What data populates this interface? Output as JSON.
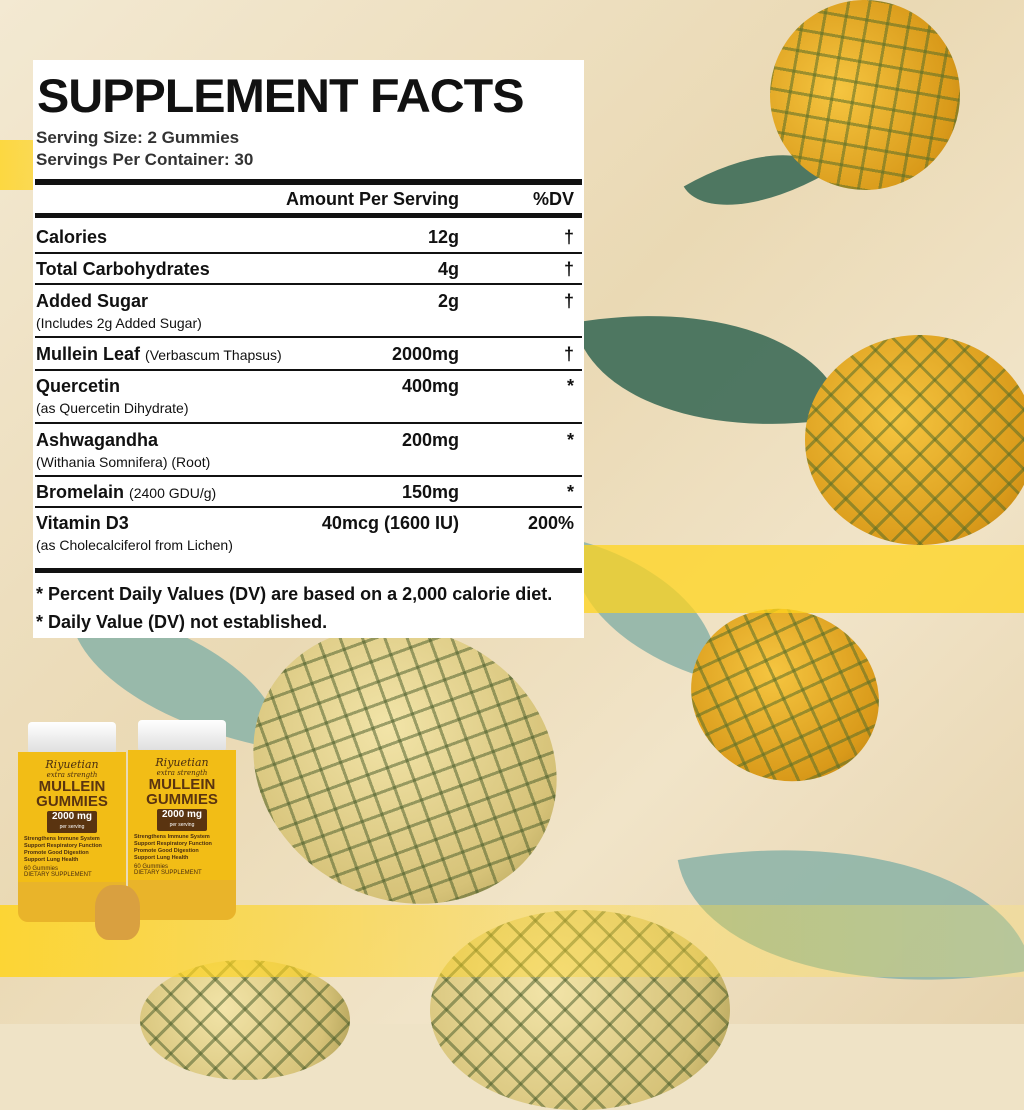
{
  "title": "SUPPLEMENT FACTS",
  "serving_size": "Serving Size: 2 Gummies",
  "servings_per_container": "Servings Per Container: 30",
  "header": {
    "amount": "Amount Per Serving",
    "dv": "%DV"
  },
  "rows": [
    {
      "name": "Calories",
      "detail": "",
      "sub": "",
      "amount": "12g",
      "dv": "†"
    },
    {
      "name": "Total Carbohydrates",
      "detail": "",
      "sub": "",
      "amount": "4g",
      "dv": "†"
    },
    {
      "name": "Added Sugar",
      "detail": "",
      "sub": "(Includes 2g Added Sugar)",
      "amount": "2g",
      "dv": "†"
    },
    {
      "name": "Mullein Leaf",
      "detail": "(Verbascum Thapsus)",
      "sub": "",
      "amount": "2000mg",
      "dv": "†"
    },
    {
      "name": "Quercetin",
      "detail": "",
      "sub": "(as Quercetin Dihydrate)",
      "amount": "400mg",
      "dv": "*"
    },
    {
      "name": "Ashwagandha",
      "detail": "",
      "sub": "(Withania Somnifera) (Root)",
      "amount": "200mg",
      "dv": "*"
    },
    {
      "name": "Bromelain",
      "detail": "(2400 GDU/g)",
      "sub": "",
      "amount": "150mg",
      "dv": "*"
    },
    {
      "name": "Vitamin D3",
      "detail": "",
      "sub": "(as Cholecalciferol from Lichen)",
      "amount": "40mcg (1600 IU)",
      "dv": "200%"
    }
  ],
  "footnotes": [
    "* Percent Daily Values (DV) are based on a 2,000 calorie diet.",
    "* Daily Value (DV) not established."
  ],
  "product": {
    "brand": "Riyuetian",
    "tagline": "extra strength",
    "name_line1": "MULLEIN",
    "name_line2": "GUMMIES",
    "dose": "2000 mg",
    "dose_sub": "per serving",
    "benefits": [
      "Strengthens Immune System",
      "Support Respiratory Function",
      "Promote Good Digestion",
      "Support Lung Health"
    ],
    "count": "60 Gummies",
    "type": "DIETARY SUPPLEMENT"
  },
  "colors": {
    "accent_yellow": "#ffd41e",
    "label_yellow": "#f2bd16",
    "brown": "#5a3410",
    "panel": "#ffffff"
  }
}
